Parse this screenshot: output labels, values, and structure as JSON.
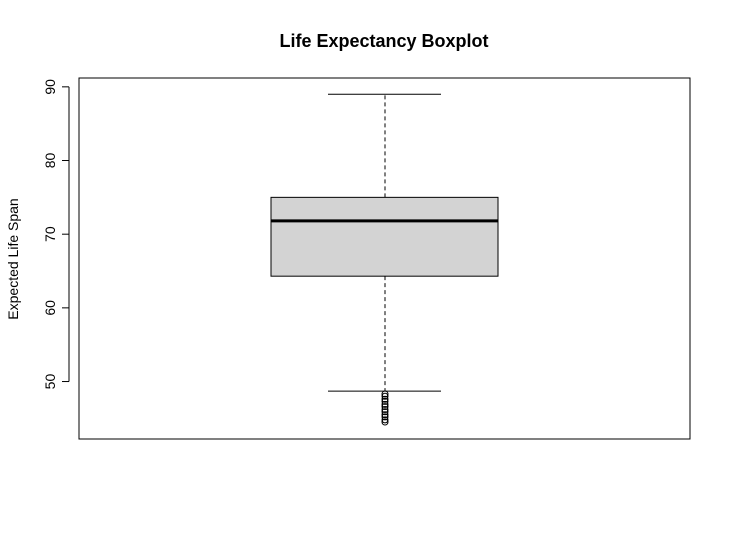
{
  "chart_data": {
    "type": "boxplot",
    "title": "Life Expectancy Boxplot",
    "xlabel": "",
    "ylabel": "Expected Life Span",
    "ylim": [
      42.2,
      91.2
    ],
    "yticks": [
      50,
      60,
      70,
      80,
      90
    ],
    "ytick_labels": [
      "50",
      "60",
      "70",
      "80",
      "90"
    ],
    "grid": false,
    "legend": "none",
    "box": {
      "whisker_low": 48.7,
      "q1": 64.3,
      "median": 71.8,
      "q3": 75.0,
      "whisker_high": 89.0,
      "outliers": [
        48.3,
        48.0,
        47.6,
        47.3,
        46.9,
        46.6,
        46.2,
        45.9,
        45.5,
        45.2,
        44.8,
        44.5
      ]
    },
    "colors": {
      "box_fill": "#d3d3d3",
      "stroke": "#000000"
    }
  }
}
